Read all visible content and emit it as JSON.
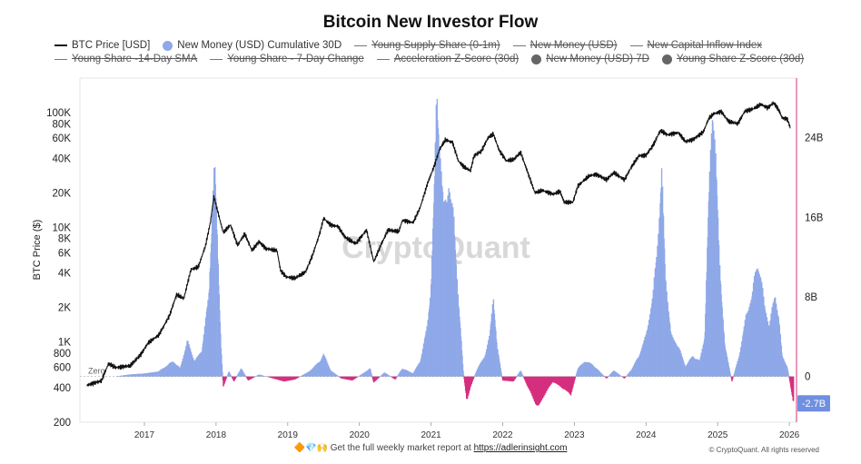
{
  "title": "Bitcoin New Investor Flow",
  "legend": [
    {
      "label": "BTC Price [USD]",
      "swatch": "line",
      "color": "#111111",
      "active": true
    },
    {
      "label": "New Money (USD) Cumulative 30D",
      "swatch": "dot",
      "color": "#8ea8e8",
      "active": true
    },
    {
      "label": "Young Supply Share (0-1m)",
      "swatch": "line",
      "color": "#777777",
      "active": false
    },
    {
      "label": "New Money (USD)",
      "swatch": "line",
      "color": "#777777",
      "active": false
    },
    {
      "label": "New Capital Inflow Index",
      "swatch": "line",
      "color": "#777777",
      "active": false
    },
    {
      "label": "Young Share -14-Day SMA",
      "swatch": "line",
      "color": "#777777",
      "active": false
    },
    {
      "label": "Young Share - 7-Day Change",
      "swatch": "line",
      "color": "#777777",
      "active": false
    },
    {
      "label": "Acceleration Z-Score (30d)",
      "swatch": "line",
      "color": "#777777",
      "active": false
    },
    {
      "label": "New Money (USD) 7D",
      "swatch": "dot",
      "color": "#666666",
      "active": false
    },
    {
      "label": "Young Share Z-Score (30d)",
      "swatch": "dot",
      "color": "#666666",
      "active": false
    }
  ],
  "watermark": "CryptoQuant",
  "footer": {
    "emoji": "🔶💎🙌",
    "text": "Get the full weekly market report at",
    "link": "https://adlerinsight.com"
  },
  "copyright": "© CryptoQuant. All rights reserved",
  "chart_data": {
    "type": "line",
    "x_ticks": [
      "2017",
      "2018",
      "2019",
      "2020",
      "2021",
      "2022",
      "2023",
      "2024",
      "2025",
      "2026"
    ],
    "x_range": [
      2016.1,
      2026.1
    ],
    "left_axis": {
      "label": "BTC Price ($)",
      "scale": "log",
      "range": [
        200,
        200000
      ],
      "ticks": [
        "100K",
        "80K",
        "60K",
        "40K",
        "20K",
        "10K",
        "8K",
        "6K",
        "4K",
        "2K",
        "1K",
        "800",
        "600",
        "400",
        "200"
      ]
    },
    "right_axis": {
      "scale": "linear",
      "unit": "B",
      "range": [
        -4.6,
        30
      ],
      "ticks": [
        "24B",
        "16B",
        "8B",
        "0"
      ],
      "current_value_label": "-2.7B",
      "zero_label": "Zero"
    },
    "series": [
      {
        "name": "BTC Price [USD]",
        "axis": "left",
        "color": "#111111",
        "points": [
          [
            2016.2,
            420
          ],
          [
            2016.4,
            460
          ],
          [
            2016.5,
            650
          ],
          [
            2016.6,
            600
          ],
          [
            2016.8,
            620
          ],
          [
            2016.95,
            780
          ],
          [
            2017.05,
            980
          ],
          [
            2017.2,
            1150
          ],
          [
            2017.35,
            1700
          ],
          [
            2017.45,
            2600
          ],
          [
            2017.55,
            2400
          ],
          [
            2017.65,
            4300
          ],
          [
            2017.75,
            4500
          ],
          [
            2017.85,
            6800
          ],
          [
            2017.92,
            11000
          ],
          [
            2017.97,
            18500
          ],
          [
            2018.02,
            14000
          ],
          [
            2018.1,
            9000
          ],
          [
            2018.2,
            10500
          ],
          [
            2018.3,
            7000
          ],
          [
            2018.4,
            8800
          ],
          [
            2018.5,
            6300
          ],
          [
            2018.6,
            7500
          ],
          [
            2018.7,
            6500
          ],
          [
            2018.85,
            6300
          ],
          [
            2018.9,
            4200
          ],
          [
            2018.98,
            3700
          ],
          [
            2019.1,
            3600
          ],
          [
            2019.25,
            4100
          ],
          [
            2019.35,
            5800
          ],
          [
            2019.45,
            9000
          ],
          [
            2019.5,
            12000
          ],
          [
            2019.6,
            10500
          ],
          [
            2019.7,
            10200
          ],
          [
            2019.8,
            8200
          ],
          [
            2019.95,
            7200
          ],
          [
            2020.1,
            9500
          ],
          [
            2020.2,
            5000
          ],
          [
            2020.3,
            7000
          ],
          [
            2020.4,
            9500
          ],
          [
            2020.55,
            9200
          ],
          [
            2020.6,
            11500
          ],
          [
            2020.75,
            11000
          ],
          [
            2020.85,
            15000
          ],
          [
            2020.95,
            24000
          ],
          [
            2021.05,
            35000
          ],
          [
            2021.12,
            48000
          ],
          [
            2021.2,
            58000
          ],
          [
            2021.3,
            55000
          ],
          [
            2021.38,
            38000
          ],
          [
            2021.45,
            34000
          ],
          [
            2021.55,
            31000
          ],
          [
            2021.6,
            42000
          ],
          [
            2021.7,
            46000
          ],
          [
            2021.8,
            61000
          ],
          [
            2021.87,
            65000
          ],
          [
            2021.95,
            47000
          ],
          [
            2022.05,
            38000
          ],
          [
            2022.15,
            39000
          ],
          [
            2022.25,
            45000
          ],
          [
            2022.35,
            30000
          ],
          [
            2022.45,
            20000
          ],
          [
            2022.55,
            21000
          ],
          [
            2022.7,
            19500
          ],
          [
            2022.8,
            20500
          ],
          [
            2022.86,
            16500
          ],
          [
            2022.98,
            16600
          ],
          [
            2023.05,
            23000
          ],
          [
            2023.2,
            28000
          ],
          [
            2023.3,
            29000
          ],
          [
            2023.45,
            26000
          ],
          [
            2023.55,
            30000
          ],
          [
            2023.7,
            26000
          ],
          [
            2023.8,
            34000
          ],
          [
            2023.9,
            42000
          ],
          [
            2024.0,
            42500
          ],
          [
            2024.1,
            52000
          ],
          [
            2024.2,
            70000
          ],
          [
            2024.3,
            64000
          ],
          [
            2024.45,
            67000
          ],
          [
            2024.55,
            56000
          ],
          [
            2024.65,
            58000
          ],
          [
            2024.8,
            68000
          ],
          [
            2024.88,
            90000
          ],
          [
            2024.95,
            98000
          ],
          [
            2025.05,
            102000
          ],
          [
            2025.15,
            84000
          ],
          [
            2025.28,
            80000
          ],
          [
            2025.38,
            103000
          ],
          [
            2025.5,
            108000
          ],
          [
            2025.6,
            118000
          ],
          [
            2025.7,
            110000
          ],
          [
            2025.78,
            122000
          ],
          [
            2025.85,
            106000
          ],
          [
            2025.9,
            90000
          ],
          [
            2025.97,
            88000
          ],
          [
            2026.02,
            72000
          ]
        ]
      },
      {
        "name": "New Money (USD) Cumulative 30D",
        "axis": "right",
        "color": "#8ea8e8",
        "negative_color": "#d62f7f",
        "type": "area",
        "points": [
          [
            2016.1,
            0
          ],
          [
            2016.6,
            0
          ],
          [
            2016.8,
            0.2
          ],
          [
            2017.0,
            0.3
          ],
          [
            2017.2,
            0.5
          ],
          [
            2017.4,
            1.5
          ],
          [
            2017.5,
            0.8
          ],
          [
            2017.6,
            3.5
          ],
          [
            2017.7,
            1.5
          ],
          [
            2017.8,
            2.5
          ],
          [
            2017.9,
            8
          ],
          [
            2017.95,
            17
          ],
          [
            2017.98,
            21
          ],
          [
            2018.02,
            13
          ],
          [
            2018.07,
            3
          ],
          [
            2018.1,
            -1
          ],
          [
            2018.18,
            0.5
          ],
          [
            2018.25,
            -0.5
          ],
          [
            2018.35,
            0.8
          ],
          [
            2018.45,
            -0.4
          ],
          [
            2018.6,
            0.2
          ],
          [
            2018.8,
            -0.2
          ],
          [
            2018.95,
            -0.5
          ],
          [
            2019.1,
            -0.3
          ],
          [
            2019.3,
            0.5
          ],
          [
            2019.45,
            1.5
          ],
          [
            2019.5,
            2.2
          ],
          [
            2019.6,
            0.6
          ],
          [
            2019.75,
            -0.2
          ],
          [
            2019.9,
            -0.4
          ],
          [
            2020.05,
            0.3
          ],
          [
            2020.15,
            0.8
          ],
          [
            2020.2,
            -0.6
          ],
          [
            2020.35,
            0.4
          ],
          [
            2020.5,
            -0.3
          ],
          [
            2020.6,
            0.8
          ],
          [
            2020.75,
            0.3
          ],
          [
            2020.85,
            1.5
          ],
          [
            2020.95,
            5
          ],
          [
            2021.0,
            9
          ],
          [
            2021.05,
            19
          ],
          [
            2021.08,
            28
          ],
          [
            2021.12,
            23
          ],
          [
            2021.18,
            16
          ],
          [
            2021.25,
            19
          ],
          [
            2021.32,
            15
          ],
          [
            2021.38,
            8
          ],
          [
            2021.45,
            0.5
          ],
          [
            2021.5,
            -2.5
          ],
          [
            2021.55,
            -1
          ],
          [
            2021.65,
            0.8
          ],
          [
            2021.75,
            2
          ],
          [
            2021.82,
            4
          ],
          [
            2021.87,
            8
          ],
          [
            2021.92,
            3
          ],
          [
            2022.0,
            -0.4
          ],
          [
            2022.15,
            -0.5
          ],
          [
            2022.25,
            0.6
          ],
          [
            2022.35,
            -1
          ],
          [
            2022.45,
            -2.5
          ],
          [
            2022.5,
            -3
          ],
          [
            2022.58,
            -1.8
          ],
          [
            2022.7,
            -0.5
          ],
          [
            2022.85,
            -1.2
          ],
          [
            2022.95,
            -1.8
          ],
          [
            2023.05,
            0.8
          ],
          [
            2023.15,
            1.5
          ],
          [
            2023.25,
            1.2
          ],
          [
            2023.35,
            0.5
          ],
          [
            2023.45,
            -0.2
          ],
          [
            2023.55,
            0.6
          ],
          [
            2023.7,
            -0.2
          ],
          [
            2023.8,
            0.7
          ],
          [
            2023.9,
            2
          ],
          [
            2024.0,
            4
          ],
          [
            2024.1,
            8
          ],
          [
            2024.17,
            14
          ],
          [
            2024.22,
            20
          ],
          [
            2024.27,
            10
          ],
          [
            2024.35,
            4
          ],
          [
            2024.45,
            3
          ],
          [
            2024.55,
            1
          ],
          [
            2024.65,
            2
          ],
          [
            2024.75,
            1.5
          ],
          [
            2024.82,
            4
          ],
          [
            2024.88,
            18
          ],
          [
            2024.93,
            27
          ],
          [
            2024.97,
            22
          ],
          [
            2025.02,
            12
          ],
          [
            2025.1,
            3
          ],
          [
            2025.2,
            -0.5
          ],
          [
            2025.3,
            2
          ],
          [
            2025.4,
            6
          ],
          [
            2025.48,
            8
          ],
          [
            2025.55,
            11
          ],
          [
            2025.6,
            10
          ],
          [
            2025.65,
            7
          ],
          [
            2025.72,
            5
          ],
          [
            2025.8,
            8
          ],
          [
            2025.85,
            6
          ],
          [
            2025.9,
            2
          ],
          [
            2025.97,
            1
          ],
          [
            2026.02,
            -1
          ],
          [
            2026.06,
            -2.7
          ]
        ]
      }
    ]
  }
}
